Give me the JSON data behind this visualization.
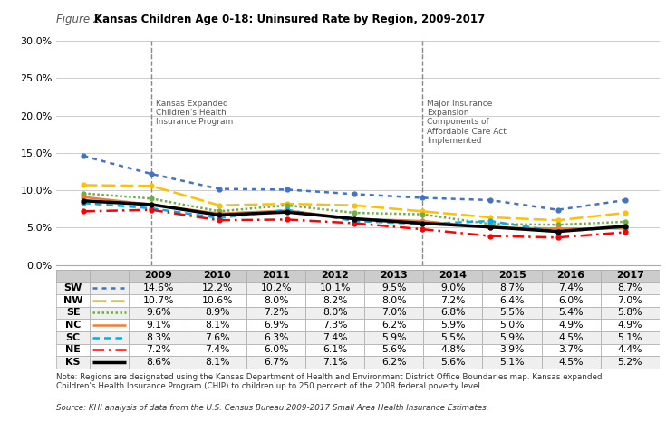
{
  "title_figure": "Figure 2.",
  "title_main": "Kansas Children Age 0-18: Uninsured Rate by Region, 2009-2017",
  "years": [
    2009,
    2010,
    2011,
    2012,
    2013,
    2014,
    2015,
    2016,
    2017
  ],
  "series": {
    "SW": [
      14.6,
      12.2,
      10.2,
      10.1,
      9.5,
      9.0,
      8.7,
      7.4,
      8.7
    ],
    "NW": [
      10.7,
      10.6,
      8.0,
      8.2,
      8.0,
      7.2,
      6.4,
      6.0,
      7.0
    ],
    "SE": [
      9.6,
      8.9,
      7.2,
      8.0,
      7.0,
      6.8,
      5.5,
      5.4,
      5.8
    ],
    "NC": [
      9.1,
      8.1,
      6.9,
      7.3,
      6.2,
      5.9,
      5.0,
      4.9,
      4.9
    ],
    "SC": [
      8.3,
      7.6,
      6.3,
      7.4,
      5.9,
      5.5,
      5.9,
      4.5,
      5.1
    ],
    "NE": [
      7.2,
      7.4,
      6.0,
      6.1,
      5.6,
      4.8,
      3.9,
      3.7,
      4.4
    ],
    "KS": [
      8.6,
      8.1,
      6.7,
      7.1,
      6.2,
      5.6,
      5.1,
      4.5,
      5.2
    ]
  },
  "colors": {
    "SW": "#4472C4",
    "NW": "#FFC000",
    "SE": "#70AD47",
    "NC": "#ED7D31",
    "SC": "#00B0F0",
    "NE": "#FF0000",
    "KS": "#000000"
  },
  "ylim": [
    0.0,
    0.3
  ],
  "yticks": [
    0.0,
    0.05,
    0.1,
    0.15,
    0.2,
    0.25,
    0.3
  ],
  "ytick_labels": [
    "0.0%",
    "5.0%",
    "10.0%",
    "15.0%",
    "20.0%",
    "25.0%",
    "30.0%"
  ],
  "vline1_year": 2010,
  "vline2_year": 2014,
  "vline1_label": "Kansas Expanded\nChildren's Health\nInsurance Program",
  "vline2_label": "Major Insurance\nExpansion\nComponents of\nAffordable Care Act\nImplemented",
  "note": "Note: Regions are designated using the Kansas Department of Health and Environment District Office Boundaries map. Kansas expanded\nChildren's Health Insurance Program (CHIP) to children up to 250 percent of the 2008 federal poverty level.",
  "source": "Source: KHI analysis of data from the U.S. Census Bureau 2009-2017 Small Area Health Insurance Estimates.",
  "regions_order": [
    "SW",
    "NW",
    "SE",
    "NC",
    "SC",
    "NE",
    "KS"
  ],
  "bg_color": "#FFFFFF"
}
